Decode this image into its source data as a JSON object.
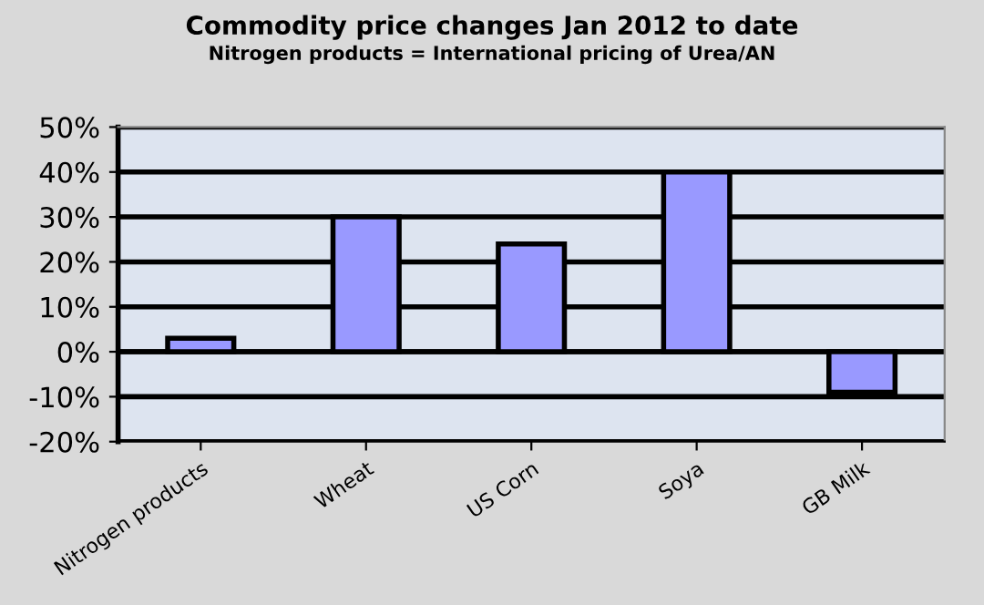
{
  "chart_data": {
    "type": "bar",
    "title": "Commodity price changes Jan 2012 to date",
    "subtitle": "Nitrogen products = International pricing of Urea/AN",
    "categories": [
      "Nitrogen products",
      "Wheat",
      "US Corn",
      "Soya",
      "GB Milk"
    ],
    "values": [
      3,
      30,
      24,
      40,
      -9
    ],
    "color": "#9999ff",
    "ylim": [
      -20,
      50
    ],
    "yticks": [
      {
        "value": -20,
        "label": "-20%"
      },
      {
        "value": -10,
        "label": "-10%"
      },
      {
        "value": 0,
        "label": "0%"
      },
      {
        "value": 10,
        "label": "10%"
      },
      {
        "value": 20,
        "label": "20%"
      },
      {
        "value": 30,
        "label": "30%"
      },
      {
        "value": 40,
        "label": "40%"
      },
      {
        "value": 50,
        "label": "50%"
      }
    ],
    "grid": "y",
    "legend": false
  }
}
